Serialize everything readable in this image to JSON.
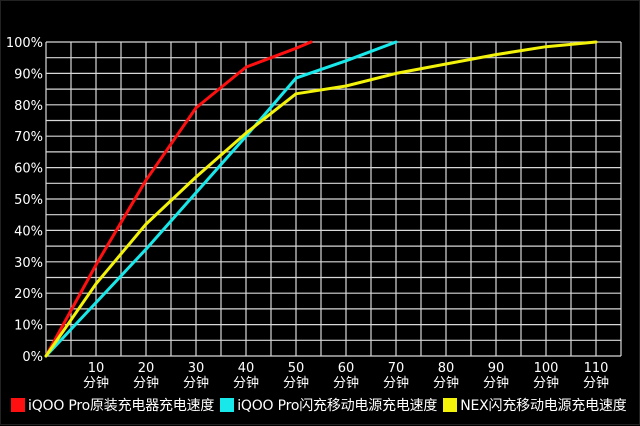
{
  "chart_data": {
    "type": "line",
    "title": "",
    "xlabel": "",
    "ylabel": "",
    "xlim": [
      0,
      115
    ],
    "ylim": [
      0,
      100
    ],
    "grid": true,
    "legend_position": "bottom",
    "y_ticks": [
      "0%",
      "10%",
      "20%",
      "30%",
      "40%",
      "50%",
      "60%",
      "70%",
      "80%",
      "90%",
      "100%"
    ],
    "x_ticks": [
      {
        "value": 10,
        "line1": "10",
        "line2": "分钟"
      },
      {
        "value": 20,
        "line1": "20",
        "line2": "分钟"
      },
      {
        "value": 30,
        "line1": "30",
        "line2": "分钟"
      },
      {
        "value": 40,
        "line1": "40",
        "line2": "分钟"
      },
      {
        "value": 50,
        "line1": "50",
        "line2": "分钟"
      },
      {
        "value": 60,
        "line1": "60",
        "line2": "分钟"
      },
      {
        "value": 70,
        "line1": "70",
        "line2": "分钟"
      },
      {
        "value": 80,
        "line1": "80",
        "line2": "分钟"
      },
      {
        "value": 90,
        "line1": "90",
        "line2": "分钟"
      },
      {
        "value": 100,
        "line1": "100",
        "line2": "分钟"
      },
      {
        "value": 110,
        "line1": "110",
        "line2": "分钟"
      }
    ],
    "series": [
      {
        "name": "iQOO Pro原装充电器充电速度",
        "color": "#ff1010",
        "x": [
          0,
          10,
          20,
          30,
          40,
          50,
          53
        ],
        "values": [
          0,
          29,
          56,
          79,
          92,
          98,
          100
        ]
      },
      {
        "name": "iQOO Pro闪充移动电源充电速度",
        "color": "#19e8ea",
        "x": [
          0,
          10,
          20,
          30,
          40,
          50,
          60,
          70
        ],
        "values": [
          0,
          17,
          34,
          52,
          70,
          88.5,
          94,
          100
        ]
      },
      {
        "name": "NEX闪充移动电源充电速度",
        "color": "#f2f20a",
        "x": [
          0,
          10,
          20,
          30,
          40,
          50,
          60,
          70,
          80,
          90,
          100,
          110
        ],
        "values": [
          0,
          23,
          42,
          57,
          71,
          83.5,
          86,
          90,
          93,
          96,
          98.5,
          100
        ]
      }
    ]
  },
  "legend": [
    {
      "label": "iQOO Pro原装充电器充电速度",
      "color": "#ff1010"
    },
    {
      "label": "iQOO Pro闪充移动电源充电速度",
      "color": "#19e8ea"
    },
    {
      "label": "NEX闪充移动电源充电速度",
      "color": "#f2f20a"
    }
  ],
  "colors": {
    "background": "#000000",
    "grid": "#d8d8d8",
    "text": "#ffffff"
  }
}
